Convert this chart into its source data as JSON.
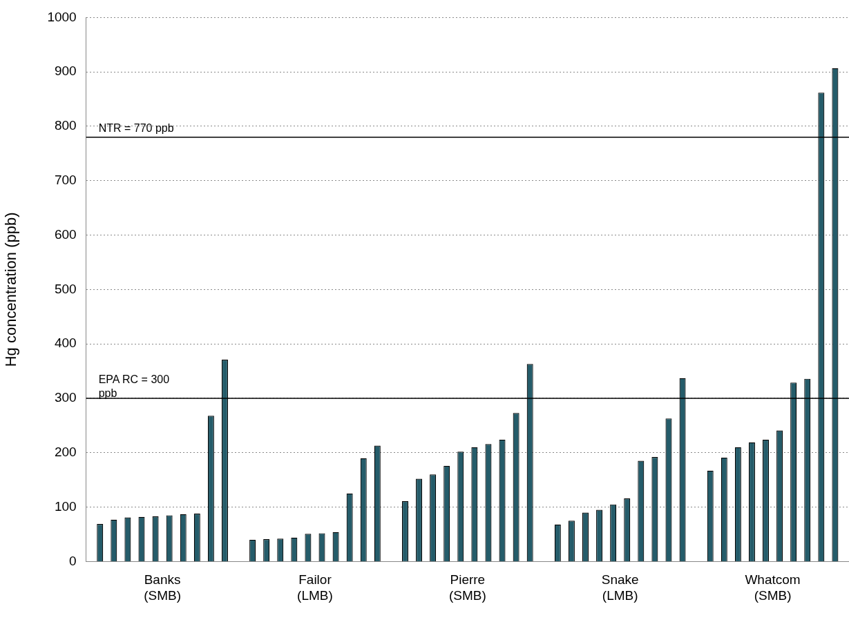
{
  "chart_data": {
    "type": "bar",
    "ylabel": "Hg concentration (ppb)",
    "categories": [
      "Banks\n(SMB)",
      "Failor\n(LMB)",
      "Pierre\n(SMB)",
      "Snake\n(LMB)",
      "Whatcom\n(SMB)"
    ],
    "series": [
      {
        "color": "#255c6a",
        "values": [
          69,
          40,
          111,
          68,
          167
        ]
      },
      {
        "color": "#255c6a",
        "values": [
          77,
          41,
          152,
          75,
          191
        ]
      },
      {
        "color": "#255c6a",
        "values": [
          81,
          42,
          160,
          90,
          210
        ]
      },
      {
        "color": "#255c6a",
        "values": [
          82,
          44,
          176,
          95,
          219
        ]
      },
      {
        "color": "#255c6a",
        "values": [
          83,
          51,
          202,
          105,
          224
        ]
      },
      {
        "color": "#255c6a",
        "values": [
          85,
          52,
          210,
          116,
          241
        ]
      },
      {
        "color": "#255c6a",
        "values": [
          87,
          54,
          216,
          185,
          329
        ]
      },
      {
        "color": "#255c6a",
        "values": [
          88,
          125,
          224,
          192,
          336
        ]
      },
      {
        "color": "#255c6a",
        "values": [
          268,
          190,
          273,
          263,
          862
        ]
      },
      {
        "color": "#255c6a",
        "values": [
          371,
          213,
          363,
          337,
          907
        ]
      }
    ],
    "ylim": [
      0,
      1000
    ],
    "yticks": [
      0,
      100,
      200,
      300,
      400,
      500,
      600,
      700,
      800,
      900,
      1000
    ],
    "grid": "y",
    "legend": false,
    "annotations": [
      {
        "text": "NTR = 770 ppb",
        "y": 780
      }
    ],
    "ref_lines": [
      {
        "axis": "y",
        "value": 780,
        "color": "#000000"
      },
      {
        "axis": "y",
        "value": 300,
        "label": "EPA RC = 300 ppb",
        "color": "#000000"
      }
    ]
  }
}
